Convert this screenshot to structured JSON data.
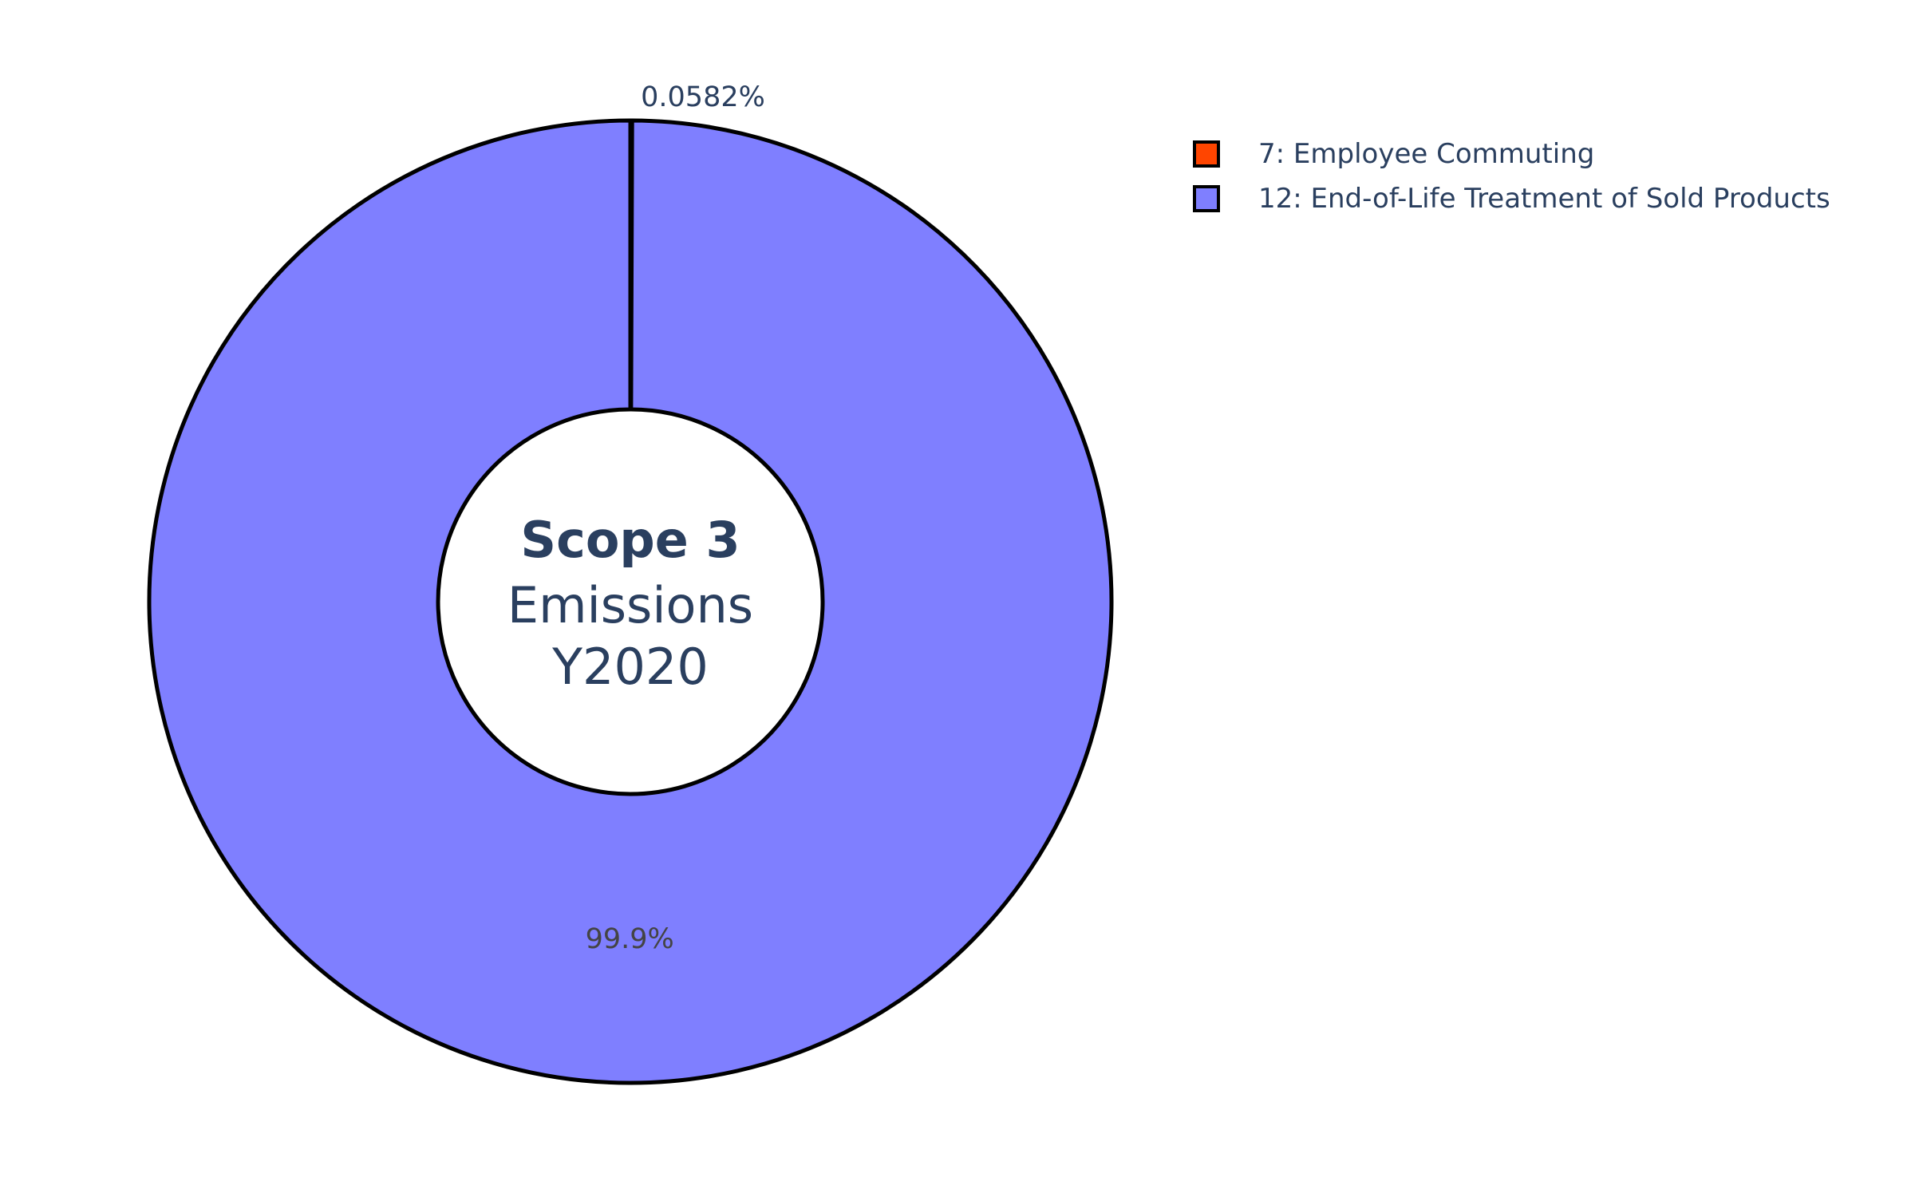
{
  "chart_data": {
    "type": "pie",
    "hole": true,
    "center_text": {
      "line1": "Scope 3",
      "line2": "Emissions",
      "line3": "Y2020"
    },
    "slices": [
      {
        "label": "7: Employee Commuting",
        "percent": 0.0582,
        "percent_label": "0.0582%",
        "color": "#ff4500"
      },
      {
        "label": "12: End-of-Life Treatment of Sold Products",
        "percent": 99.9418,
        "percent_label": "99.9%",
        "color": "#7f7fff"
      }
    ],
    "legend_position": "top-right",
    "text_color": "#2a3f5f",
    "outline_color": "#000000"
  }
}
